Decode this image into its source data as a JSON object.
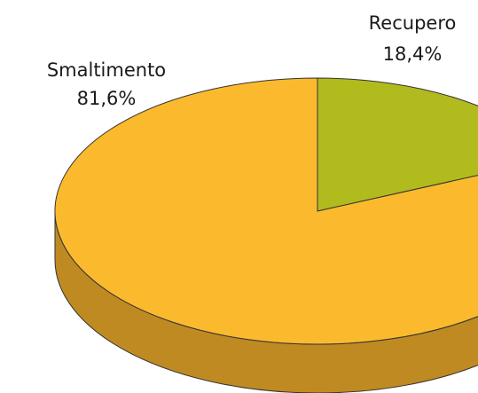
{
  "chart_data": {
    "type": "pie",
    "categories": [
      "Recupero",
      "Smaltimento"
    ],
    "values": [
      18.4,
      81.6
    ],
    "value_labels": [
      "18,4%",
      "81,6%"
    ],
    "colors": [
      "#b2bb1e",
      "#fbba2e"
    ]
  }
}
